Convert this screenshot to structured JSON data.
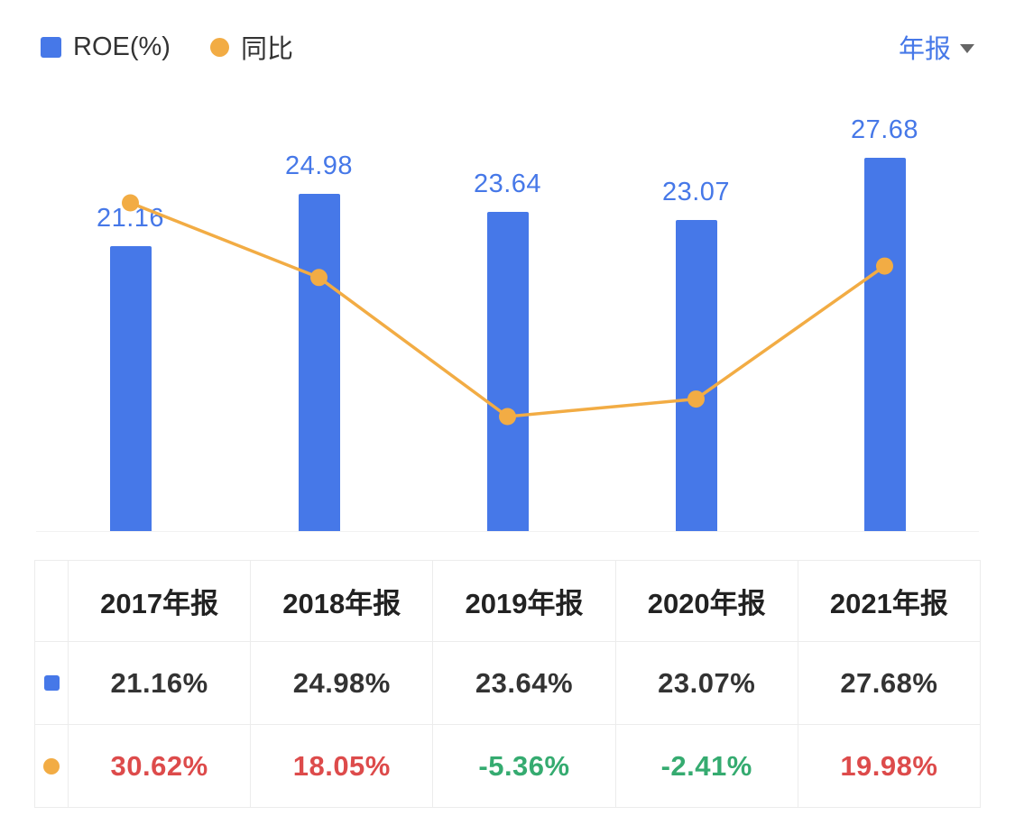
{
  "legend": {
    "series": [
      {
        "label": "ROE(%)",
        "swatch": "blue-square"
      },
      {
        "label": "同比",
        "swatch": "orange-circle"
      }
    ]
  },
  "period_selector": {
    "value": "年报"
  },
  "colors": {
    "bar_blue": "#4678e8",
    "line_orange": "#f2ac44",
    "value_label_blue": "#4678e8",
    "positive_red": "#dd4b4b",
    "negative_green": "#35ab70",
    "grid_border": "#ececec",
    "header_text": "#222222",
    "body_text": "#333333"
  },
  "chart_data": {
    "type": "bar",
    "categories": [
      "2017年报",
      "2018年报",
      "2019年报",
      "2020年报",
      "2021年报"
    ],
    "series": [
      {
        "name": "ROE(%)",
        "type": "bar",
        "values": [
          21.16,
          24.98,
          23.64,
          23.07,
          27.68
        ],
        "value_labels": [
          "21.16",
          "24.98",
          "23.64",
          "23.07",
          "27.68"
        ]
      },
      {
        "name": "同比",
        "type": "line",
        "values": [
          30.62,
          18.05,
          -5.36,
          -2.41,
          19.98
        ]
      }
    ],
    "legend_position": "top-left",
    "grid": false,
    "x_axis_labels_shown": false,
    "y_axis_shown": false
  },
  "table": {
    "corner": "",
    "headers": [
      "2017年报",
      "2018年报",
      "2019年报",
      "2020年报",
      "2021年报"
    ],
    "rows": [
      {
        "series": "ROE(%)",
        "icon": "blue-square",
        "values": [
          "21.16%",
          "24.98%",
          "23.64%",
          "23.07%",
          "27.68%"
        ]
      },
      {
        "series": "同比",
        "icon": "orange-circle",
        "values": [
          "30.62%",
          "18.05%",
          "-5.36%",
          "-2.41%",
          "19.98%"
        ]
      }
    ]
  }
}
